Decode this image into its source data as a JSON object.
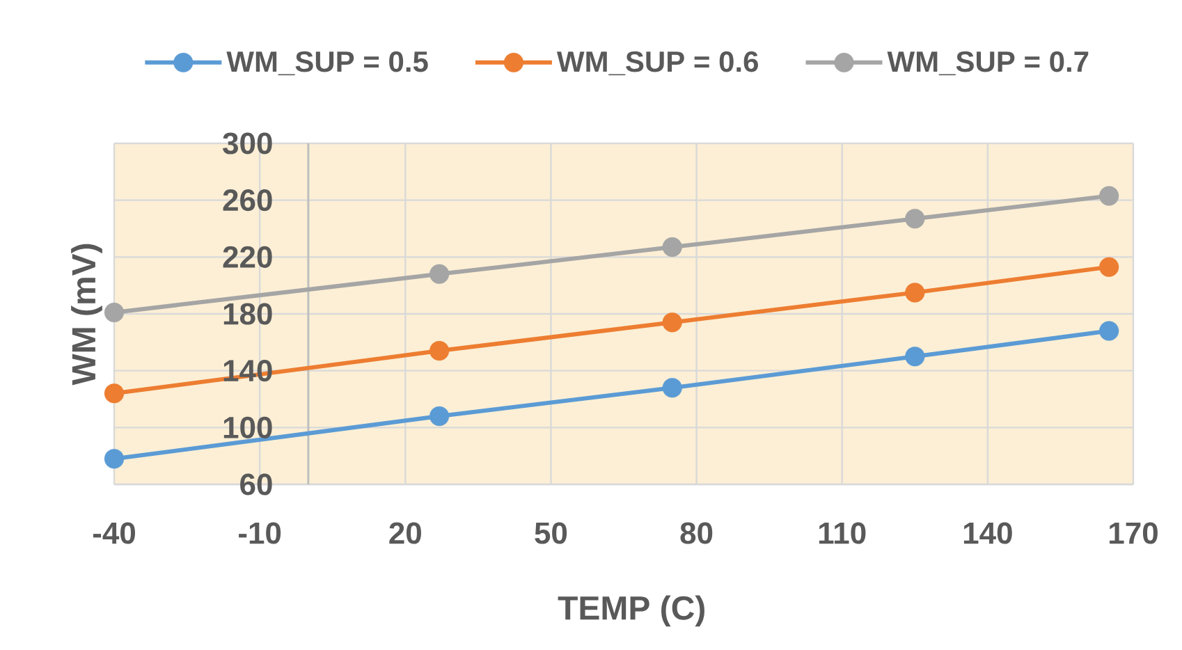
{
  "chart_data": {
    "type": "line",
    "xlabel": "TEMP (C)",
    "ylabel": "WM (mV)",
    "x": [
      -40,
      27,
      75,
      125,
      165
    ],
    "series": [
      {
        "name": "WM_SUP = 0.5",
        "color": "#5b9bd5",
        "values": [
          78,
          108,
          128,
          150,
          168
        ]
      },
      {
        "name": "WM_SUP = 0.6",
        "color": "#ed7d31",
        "values": [
          124,
          154,
          174,
          195,
          213
        ]
      },
      {
        "name": "WM_SUP = 0.7",
        "color": "#a5a5a5",
        "values": [
          181,
          208,
          227,
          247,
          263
        ]
      }
    ],
    "xlim": [
      -40,
      170
    ],
    "ylim": [
      60,
      300
    ],
    "xticks": [
      -40,
      -10,
      20,
      50,
      80,
      110,
      140,
      170
    ],
    "yticks": [
      60,
      100,
      140,
      180,
      220,
      260,
      300
    ],
    "grid": true,
    "legend": "top",
    "marker": "circle"
  }
}
